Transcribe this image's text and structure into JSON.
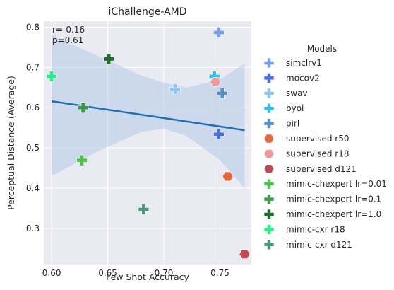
{
  "chart_data": {
    "type": "scatter",
    "title": "iChallenge-AMD",
    "xlabel": "Few Shot Accuracy",
    "ylabel": "Perceptual Distance (Average)",
    "xlim": [
      0.593,
      0.778
    ],
    "ylim": [
      0.21,
      0.815
    ],
    "xticks": [
      "0.60",
      "0.65",
      "0.70",
      "0.75"
    ],
    "xtick_values": [
      0.6,
      0.65,
      0.7,
      0.75
    ],
    "yticks": [
      "0.3",
      "0.4",
      "0.5",
      "0.6",
      "0.7",
      "0.8"
    ],
    "ytick_values": [
      0.3,
      0.4,
      0.5,
      0.6,
      0.7,
      0.8
    ],
    "grid": true,
    "background": "#eaeaf2",
    "annotation": [
      "r=-0.16",
      "p=0.61"
    ],
    "regression": {
      "x": [
        0.6,
        0.772
      ],
      "y": [
        0.616,
        0.544
      ],
      "color": "#1f6fb5",
      "ci_band": [
        {
          "x": 0.6,
          "lo": 0.43,
          "hi": 0.78
        },
        {
          "x": 0.64,
          "lo": 0.49,
          "hi": 0.73
        },
        {
          "x": 0.68,
          "lo": 0.54,
          "hi": 0.68
        },
        {
          "x": 0.7,
          "lo": 0.548,
          "hi": 0.662
        },
        {
          "x": 0.72,
          "lo": 0.53,
          "hi": 0.65
        },
        {
          "x": 0.75,
          "lo": 0.47,
          "hi": 0.67
        },
        {
          "x": 0.772,
          "lo": 0.4,
          "hi": 0.71
        }
      ]
    },
    "legend": {
      "title": "Models",
      "position": "right"
    },
    "series": [
      {
        "name": "simclrv1",
        "marker": "plus",
        "color": "#7b9ee8",
        "x": [
          0.749
        ],
        "y": [
          0.787
        ]
      },
      {
        "name": "mocov2",
        "marker": "plus",
        "color": "#4a6fd8",
        "x": [
          0.749
        ],
        "y": [
          0.534
        ]
      },
      {
        "name": "swav",
        "marker": "plus",
        "color": "#8ec6f0",
        "x": [
          0.71
        ],
        "y": [
          0.646
        ]
      },
      {
        "name": "byol",
        "marker": "plus",
        "color": "#2ec0ea",
        "x": [
          0.745
        ],
        "y": [
          0.678
        ]
      },
      {
        "name": "pirl",
        "marker": "plus",
        "color": "#5b8fc4",
        "x": [
          0.752
        ],
        "y": [
          0.636
        ]
      },
      {
        "name": "supervised r50",
        "marker": "hexagon",
        "color": "#e8663a",
        "x": [
          0.757
        ],
        "y": [
          0.429
        ]
      },
      {
        "name": "supervised r18",
        "marker": "hexagon",
        "color": "#ef9a9a",
        "x": [
          0.746
        ],
        "y": [
          0.664
        ]
      },
      {
        "name": "supervised d121",
        "marker": "hexagon",
        "color": "#c04a55",
        "x": [
          0.772
        ],
        "y": [
          0.236
        ]
      },
      {
        "name": "mimic-chexpert lr=0.01",
        "marker": "plus",
        "color": "#4cc24c",
        "x": [
          0.627
        ],
        "y": [
          0.469
        ]
      },
      {
        "name": "mimic-chexpert lr=0.1",
        "marker": "plus",
        "color": "#3a9a4a",
        "x": [
          0.628
        ],
        "y": [
          0.6
        ]
      },
      {
        "name": "mimic-chexpert lr=1.0",
        "marker": "plus",
        "color": "#1f6e2a",
        "x": [
          0.651
        ],
        "y": [
          0.721
        ]
      },
      {
        "name": "mimic-cxr r18",
        "marker": "plus",
        "color": "#2fe88a",
        "x": [
          0.6
        ],
        "y": [
          0.678
        ]
      },
      {
        "name": "mimic-cxr d121",
        "marker": "plus",
        "color": "#4a9a78",
        "x": [
          0.682
        ],
        "y": [
          0.347
        ]
      }
    ]
  }
}
